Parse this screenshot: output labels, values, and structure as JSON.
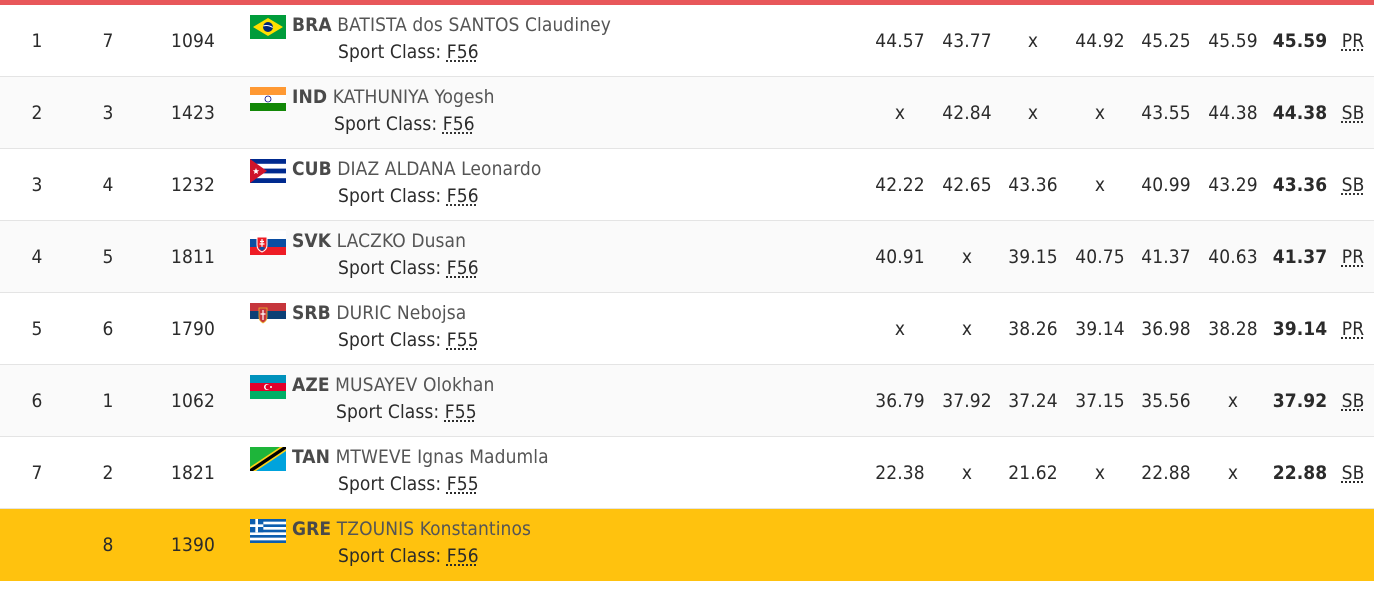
{
  "colors": {
    "top_bar": "#e8575a",
    "highlight_row": "#ffc20e"
  },
  "sport_class_label": "Sport Class:",
  "rows": [
    {
      "rank": "1",
      "order": "7",
      "bib": "1094",
      "noc": "BRA",
      "name": "BATISTA dos SANTOS Claudiney",
      "flag": "brazil-flag-icon",
      "sport_class": "F56",
      "attempts": [
        "44.57",
        "43.77",
        "x",
        "44.92",
        "45.25",
        "45.59"
      ],
      "best": "45.59",
      "record": "PR"
    },
    {
      "rank": "2",
      "order": "3",
      "bib": "1423",
      "noc": "IND",
      "name": "KATHUNIYA Yogesh",
      "flag": "india-flag-icon",
      "sport_class": "F56",
      "attempts": [
        "x",
        "42.84",
        "x",
        "x",
        "43.55",
        "44.38"
      ],
      "best": "44.38",
      "record": "SB"
    },
    {
      "rank": "3",
      "order": "4",
      "bib": "1232",
      "noc": "CUB",
      "name": "DIAZ ALDANA Leonardo",
      "flag": "cuba-flag-icon",
      "sport_class": "F56",
      "attempts": [
        "42.22",
        "42.65",
        "43.36",
        "x",
        "40.99",
        "43.29"
      ],
      "best": "43.36",
      "record": "SB"
    },
    {
      "rank": "4",
      "order": "5",
      "bib": "1811",
      "noc": "SVK",
      "name": "LACZKO Dusan",
      "flag": "slovakia-flag-icon",
      "sport_class": "F56",
      "attempts": [
        "40.91",
        "x",
        "39.15",
        "40.75",
        "41.37",
        "40.63"
      ],
      "best": "41.37",
      "record": "PR"
    },
    {
      "rank": "5",
      "order": "6",
      "bib": "1790",
      "noc": "SRB",
      "name": "DURIC Nebojsa",
      "flag": "serbia-flag-icon",
      "sport_class": "F55",
      "attempts": [
        "x",
        "x",
        "38.26",
        "39.14",
        "36.98",
        "38.28"
      ],
      "best": "39.14",
      "record": "PR"
    },
    {
      "rank": "6",
      "order": "1",
      "bib": "1062",
      "noc": "AZE",
      "name": "MUSAYEV Olokhan",
      "flag": "azerbaijan-flag-icon",
      "sport_class": "F55",
      "attempts": [
        "36.79",
        "37.92",
        "37.24",
        "37.15",
        "35.56",
        "x"
      ],
      "best": "37.92",
      "record": "SB"
    },
    {
      "rank": "7",
      "order": "2",
      "bib": "1821",
      "noc": "TAN",
      "name": "MTWEVE Ignas Madumla",
      "flag": "tanzania-flag-icon",
      "sport_class": "F55",
      "attempts": [
        "22.38",
        "x",
        "21.62",
        "x",
        "22.88",
        "x"
      ],
      "best": "22.88",
      "record": "SB"
    },
    {
      "rank": "",
      "order": "8",
      "bib": "1390",
      "noc": "GRE",
      "name": "TZOUNIS Konstantinos",
      "flag": "greece-flag-icon",
      "sport_class": "F56",
      "attempts": [
        "",
        "",
        "",
        "",
        "",
        ""
      ],
      "best": "",
      "record": ""
    }
  ]
}
